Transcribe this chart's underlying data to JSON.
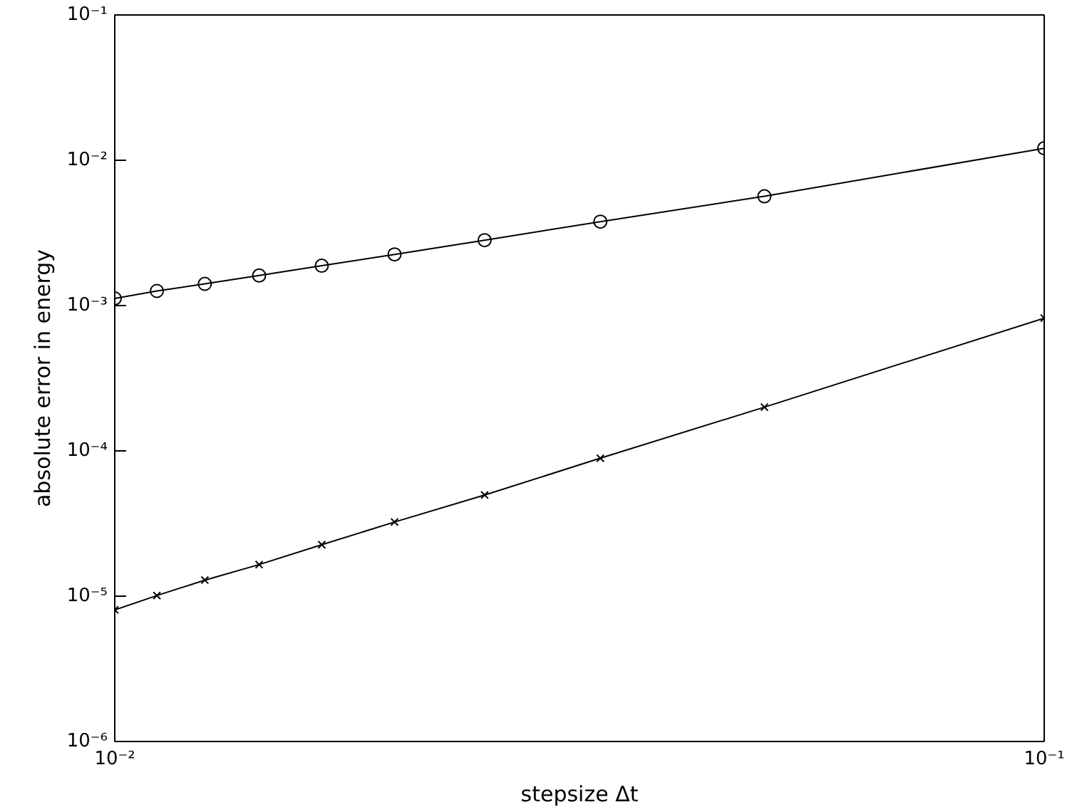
{
  "chart_data": {
    "type": "line",
    "xlabel": "stepsize Δt",
    "ylabel": "absolute error in energy",
    "log": "xy",
    "grid": false,
    "line_style": "solid",
    "xlim": [
      0.01,
      0.1
    ],
    "ylim": [
      1e-06,
      0.1
    ],
    "xticks": [
      {
        "value": 0.01,
        "label": "10⁻²"
      },
      {
        "value": 0.1,
        "label": "10⁻¹"
      }
    ],
    "yticks": [
      {
        "value": 1e-06,
        "label": "10⁻⁶"
      },
      {
        "value": 1e-05,
        "label": "10⁻⁵"
      },
      {
        "value": 0.0001,
        "label": "10⁻⁴"
      },
      {
        "value": 0.001,
        "label": "10⁻³"
      },
      {
        "value": 0.01,
        "label": "10⁻²"
      },
      {
        "value": 0.1,
        "label": "10⁻¹"
      }
    ],
    "x": [
      0.1,
      0.05,
      0.0333,
      0.025,
      0.02,
      0.0167,
      0.0143,
      0.0125,
      0.0111,
      0.01
    ],
    "series": [
      {
        "color": "#000000",
        "marker": "circle",
        "values": [
          0.0121,
          0.00565,
          0.00378,
          0.00282,
          0.00225,
          0.00188,
          0.00161,
          0.00141,
          0.00126,
          0.00112
        ]
      },
      {
        "color": "#000000",
        "marker": "cross",
        "values": [
          0.00082,
          0.0002,
          8.9e-05,
          4.97e-05,
          3.24e-05,
          2.26e-05,
          1.65e-05,
          1.29e-05,
          1.01e-05,
          8.05e-06
        ]
      }
    ]
  }
}
